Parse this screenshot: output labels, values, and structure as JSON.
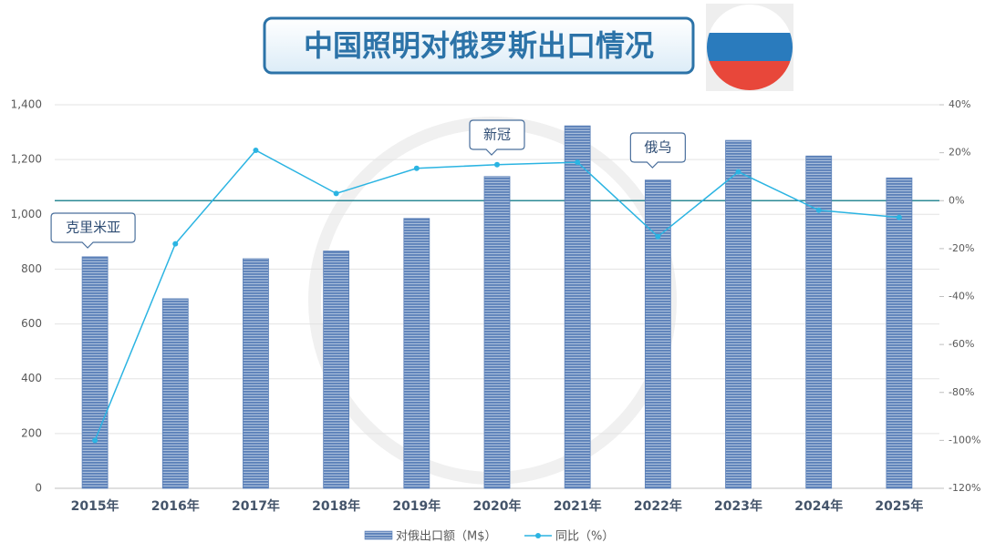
{
  "chart_data": {
    "type": "bar-line",
    "title": "中国照明对俄罗斯出口情况",
    "categories": [
      "2015年",
      "2016年",
      "2017年",
      "2018年",
      "2019年",
      "2020年",
      "2021年",
      "2022年",
      "2023年",
      "2024年",
      "2025年"
    ],
    "series": [
      {
        "name": "对俄出口额（M$）",
        "type": "bar",
        "color": "#5b80b8",
        "values": [
          845,
          692,
          838,
          866,
          985,
          1138,
          1323,
          1125,
          1270,
          1213,
          1133
        ]
      },
      {
        "name": "同比（%）",
        "type": "line",
        "axis": "y2",
        "color": "#2bb4e2",
        "values": [
          -100,
          -18,
          21,
          3,
          13.5,
          15,
          16,
          -15,
          12,
          -4,
          -7
        ]
      }
    ],
    "ylim": [
      0,
      1400
    ],
    "yticks": [
      0,
      200,
      400,
      600,
      800,
      {
        "value": 1000,
        "label": "1,000"
      },
      {
        "value": 1200,
        "label": "1,200"
      },
      {
        "value": 1400,
        "label": "1,400"
      }
    ],
    "y2lim": [
      -120,
      40
    ],
    "y2ticks": [
      {
        "value": -120,
        "label": "-120%"
      },
      {
        "value": -100,
        "label": "-100%"
      },
      {
        "value": -80,
        "label": "-80%"
      },
      {
        "value": -60,
        "label": "-60%"
      },
      {
        "value": -40,
        "label": "-40%"
      },
      {
        "value": -20,
        "label": "-20%"
      },
      {
        "value": 0,
        "label": "0%"
      },
      {
        "value": 20,
        "label": "20%"
      },
      {
        "value": 40,
        "label": "40%"
      }
    ],
    "grid": true,
    "legend": "bottom",
    "annotations": [
      {
        "text": "克里米亚",
        "category": "2015年"
      },
      {
        "text": "新冠",
        "category": "2020年"
      },
      {
        "text": "俄乌",
        "category": "2022年"
      }
    ]
  }
}
